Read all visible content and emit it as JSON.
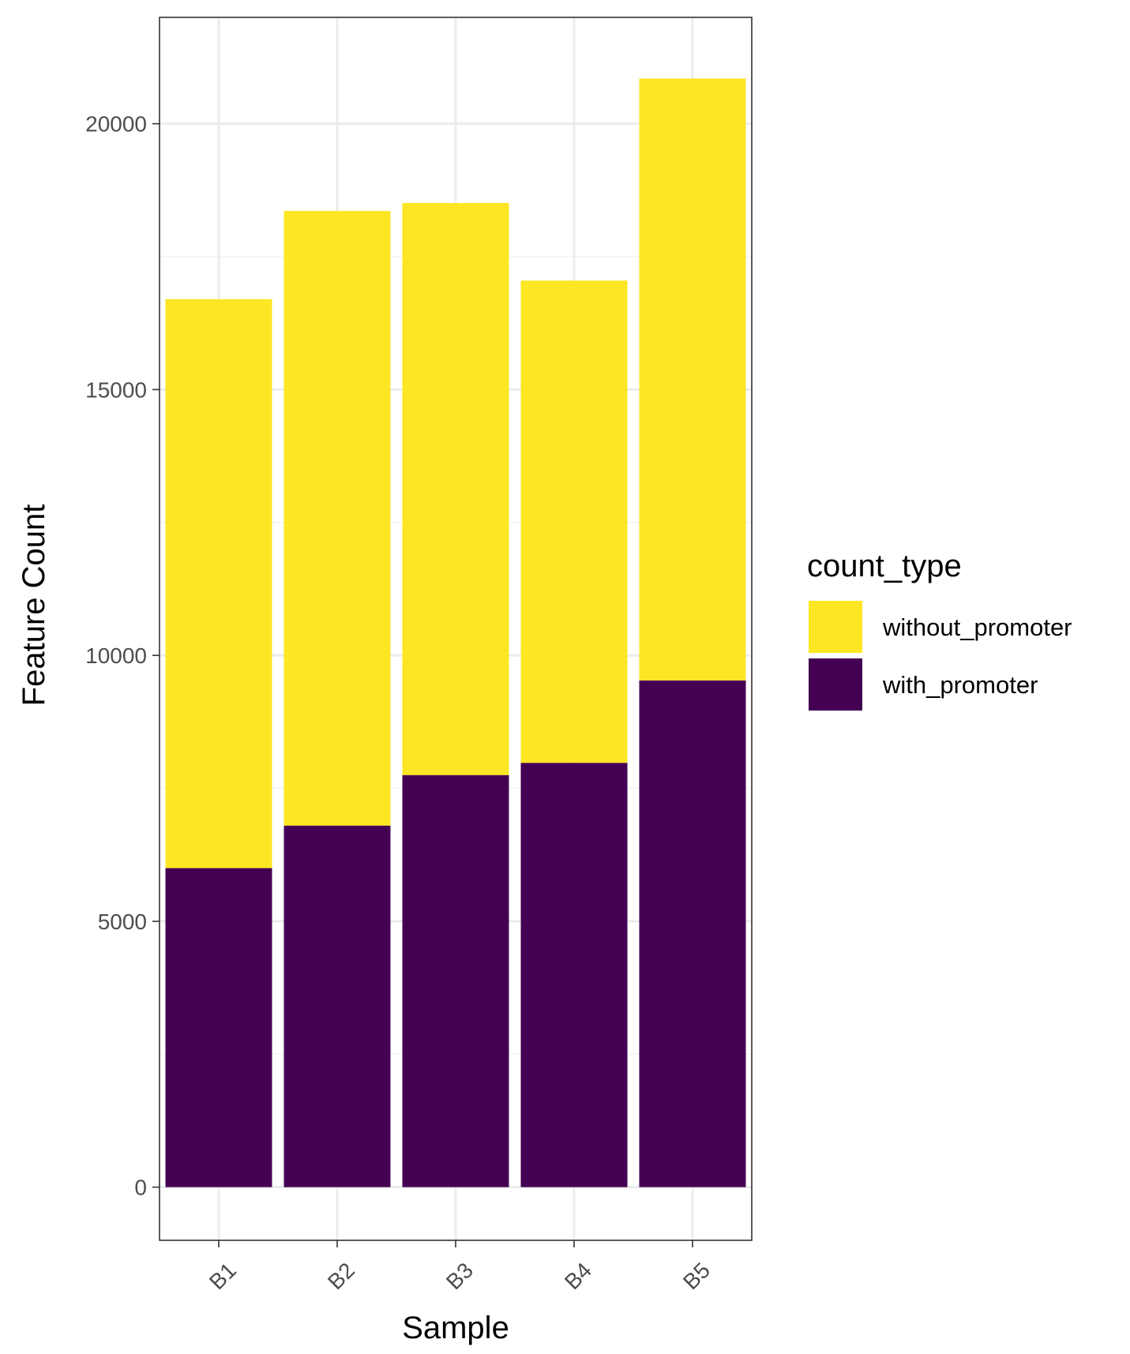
{
  "chart_data": {
    "type": "bar",
    "stacked": true,
    "categories": [
      "B1",
      "B2",
      "B3",
      "B4",
      "B5"
    ],
    "series": [
      {
        "name": "with_promoter",
        "values": [
          6000,
          6800,
          7750,
          7980,
          9530
        ],
        "color": "#440154"
      },
      {
        "name": "without_promoter",
        "values": [
          10700,
          11560,
          10760,
          9070,
          11320
        ],
        "color": "#FDE725"
      }
    ],
    "title": "",
    "xlabel": "Sample",
    "ylabel": "Feature Count",
    "ylim": [
      -1000,
      22000
    ],
    "yticks": [
      0,
      5000,
      10000,
      15000,
      20000
    ],
    "ytick_labels": [
      "0",
      "5000",
      "10000",
      "15000",
      "20000"
    ],
    "grid": true,
    "legend": {
      "title": "count_type",
      "position": "right",
      "entries": [
        "without_promoter",
        "with_promoter"
      ]
    },
    "theme": {
      "panel_border": "#333333",
      "grid_major": "#ebebeb",
      "grid_minor": "#f2f2f2",
      "tick_text": "#4d4d4d"
    }
  }
}
